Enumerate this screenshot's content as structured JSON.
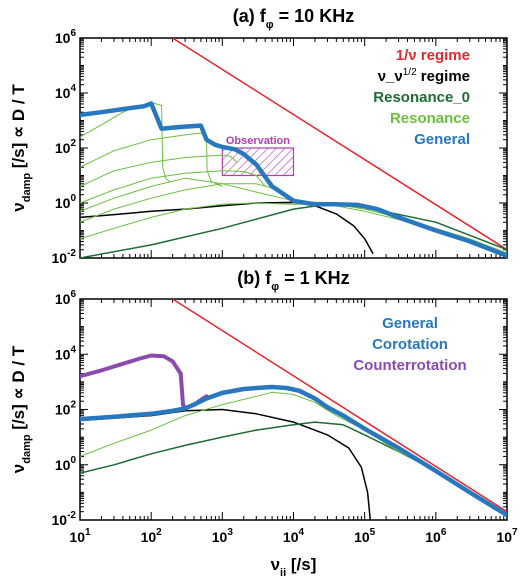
{
  "chart_data": [
    {
      "panel": "a",
      "type": "line",
      "title_prefix": "(a) f",
      "title_sub": "φ",
      "title_suffix": " = 10 KHz",
      "ylabel_main": "ν",
      "ylabel_sub": "damp",
      "ylabel_rest": " [/s] ∝ D / T",
      "xscale": "log",
      "yscale": "log",
      "xlim": [
        10,
        10000000
      ],
      "ylim": [
        0.01,
        1000000
      ],
      "yticks": [
        {
          "v": 0.01,
          "base": "10",
          "exp": "-2"
        },
        {
          "v": 1,
          "base": "10",
          "exp": "0"
        },
        {
          "v": 100,
          "base": "10",
          "exp": "2"
        },
        {
          "v": 10000,
          "base": "10",
          "exp": "4"
        },
        {
          "v": 1000000,
          "base": "10",
          "exp": "6"
        }
      ],
      "legend": [
        {
          "main": "1/ν regime",
          "sup": "",
          "tail": "",
          "color": "#e8262d"
        },
        {
          "main": "ν_ν",
          "sup": "1/2",
          "tail": " regime",
          "color": "#000000"
        },
        {
          "main": "Resonance_0",
          "sup": "",
          "tail": "",
          "color": "#1e6b34"
        },
        {
          "main": "Resonance",
          "sup": "",
          "tail": "",
          "color": "#6cbf3f"
        },
        {
          "main": "General",
          "sup": "",
          "tail": "",
          "color": "#2878c0"
        }
      ],
      "annotation": {
        "label": "Observation",
        "x": [
          1000,
          10000
        ],
        "y": [
          10,
          100
        ],
        "color": "#b040b0"
      },
      "series": [
        {
          "name": "1/ν regime",
          "color": "#e8262d",
          "width": 1.5,
          "x": [
            200,
            10000000
          ],
          "y": [
            1000000,
            0.02
          ]
        },
        {
          "name": "ν_ν^1/2 regime",
          "color": "#000000",
          "width": 1.5,
          "x": [
            10,
            30,
            100,
            300,
            1000,
            3000,
            10000,
            20000,
            40000,
            70000,
            100000,
            130000
          ],
          "y": [
            0.3,
            0.38,
            0.5,
            0.6,
            0.8,
            1.0,
            1.05,
            0.8,
            0.4,
            0.15,
            0.05,
            0.015
          ]
        },
        {
          "name": "Resonance_0",
          "color": "#1e6b34",
          "width": 1.5,
          "x": [
            10,
            100,
            1000,
            10000,
            30000,
            100000,
            1000000,
            10000000
          ],
          "y": [
            0.01,
            0.03,
            0.12,
            0.6,
            0.9,
            0.7,
            0.2,
            0.02
          ]
        },
        {
          "name": "Resonance",
          "color": "#6cbf3f",
          "width": 1,
          "x": [
            10,
            30,
            100,
            300,
            1000,
            3000,
            10000,
            30000,
            100000,
            300000,
            1000000,
            3000000,
            10000000
          ],
          "y": [
            0.05,
            0.12,
            0.3,
            0.6,
            0.9,
            1.0,
            0.9,
            0.9,
            0.5,
            0.25,
            0.1,
            0.04,
            0.015
          ]
        },
        {
          "name": "Resonance",
          "color": "#6cbf3f",
          "width": 1,
          "x": [
            10,
            30,
            100,
            300,
            1000,
            3000,
            10000,
            30000,
            100000,
            300000,
            1000000,
            3000000,
            10000000
          ],
          "y": [
            0.5,
            1.5,
            4,
            8,
            5,
            2.5,
            1.2,
            1.0,
            0.6,
            0.3,
            0.12,
            0.05,
            0.015
          ]
        },
        {
          "name": "Resonance",
          "color": "#6cbf3f",
          "width": 1,
          "x": [
            10,
            20,
            40,
            70,
            100,
            140
          ],
          "y": [
            250,
            700,
            2000,
            3500,
            4500,
            3500
          ]
        },
        {
          "name": "Resonance",
          "color": "#6cbf3f",
          "width": 1,
          "x": [
            10,
            30,
            100,
            300,
            500,
            600
          ],
          "y": [
            20,
            80,
            200,
            300,
            350,
            300
          ]
        },
        {
          "name": "Resonance",
          "color": "#6cbf3f",
          "width": 1,
          "x": [
            10,
            30,
            100,
            300,
            1000,
            1300,
            1600
          ],
          "y": [
            4,
            15,
            30,
            45,
            55,
            50,
            30
          ]
        },
        {
          "name": "Resonance",
          "color": "#6cbf3f",
          "width": 1,
          "x": [
            10,
            30,
            100,
            300,
            1000,
            2000,
            3000,
            4000
          ],
          "y": [
            1,
            3,
            8,
            12,
            15,
            14,
            10,
            4
          ]
        },
        {
          "name": "Resonance",
          "color": "#6cbf3f",
          "width": 1,
          "x": [
            10,
            30,
            100,
            300,
            1000,
            3000,
            5000,
            7000
          ],
          "y": [
            0.2,
            0.6,
            1.5,
            3,
            5,
            5,
            3.5,
            2
          ]
        },
        {
          "name": "Resonance",
          "color": "#6cbf3f",
          "width": 1,
          "x": [
            140,
            145,
            160,
            180
          ],
          "y": [
            3500,
            20,
            8,
            6
          ]
        },
        {
          "name": "Resonance",
          "color": "#6cbf3f",
          "width": 1,
          "x": [
            600,
            610,
            700,
            1000
          ],
          "y": [
            300,
            15,
            6,
            4
          ]
        },
        {
          "name": "General",
          "color": "#2878c0",
          "width": 4.5,
          "x": [
            10,
            20,
            40,
            80,
            100,
            140,
            200,
            300,
            500,
            600,
            800,
            1000,
            1500,
            2000,
            3000,
            5000,
            10000,
            20000,
            40000,
            80000,
            150000,
            300000,
            1000000,
            3000000,
            10000000
          ],
          "y": [
            1600,
            2000,
            2600,
            3300,
            4200,
            500,
            550,
            600,
            650,
            200,
            130,
            110,
            90,
            60,
            25,
            4,
            1.2,
            0.9,
            0.9,
            0.85,
            0.6,
            0.3,
            0.1,
            0.04,
            0.012
          ]
        }
      ]
    },
    {
      "panel": "b",
      "type": "line",
      "title_prefix": "(b) f",
      "title_sub": "φ",
      "title_suffix": " = 1 KHz",
      "ylabel_main": "ν",
      "ylabel_sub": "damp",
      "ylabel_rest": " [/s] ∝ D / T",
      "xlabel_main": "ν",
      "xlabel_sub": "ii",
      "xlabel_rest": " [/s]",
      "xscale": "log",
      "yscale": "log",
      "xlim": [
        10,
        10000000
      ],
      "ylim": [
        0.01,
        1000000
      ],
      "xticks": [
        {
          "v": 10,
          "base": "10",
          "exp": "1"
        },
        {
          "v": 100,
          "base": "10",
          "exp": "2"
        },
        {
          "v": 1000,
          "base": "10",
          "exp": "3"
        },
        {
          "v": 10000,
          "base": "10",
          "exp": "4"
        },
        {
          "v": 100000,
          "base": "10",
          "exp": "5"
        },
        {
          "v": 1000000,
          "base": "10",
          "exp": "6"
        },
        {
          "v": 10000000,
          "base": "10",
          "exp": "7"
        }
      ],
      "yticks": [
        {
          "v": 0.01,
          "base": "10",
          "exp": "-2"
        },
        {
          "v": 1,
          "base": "10",
          "exp": "0"
        },
        {
          "v": 100,
          "base": "10",
          "exp": "2"
        },
        {
          "v": 10000,
          "base": "10",
          "exp": "4"
        },
        {
          "v": 1000000,
          "base": "10",
          "exp": "6"
        }
      ],
      "legend": [
        {
          "main": "General",
          "sup": "",
          "tail": "",
          "color": "#2878c0"
        },
        {
          "main": "Corotation",
          "sup": "",
          "tail": "",
          "color": "#2878c0"
        },
        {
          "main": "Counterrotation",
          "sup": "",
          "tail": "",
          "color": "#8a4ab0"
        }
      ],
      "series": [
        {
          "name": "1/ν regime",
          "color": "#e8262d",
          "width": 1.5,
          "x": [
            200,
            10000000
          ],
          "y": [
            1000000,
            0.02
          ]
        },
        {
          "name": "ν_ν^1/2 regime",
          "color": "#000000",
          "width": 1.5,
          "x": [
            10,
            100,
            300,
            1000,
            3000,
            10000,
            30000,
            60000,
            90000,
            110000,
            120000
          ],
          "y": [
            40,
            60,
            90,
            100,
            70,
            35,
            12,
            4,
            0.8,
            0.1,
            0.01
          ]
        },
        {
          "name": "Resonance_0",
          "color": "#1e6b34",
          "width": 1.5,
          "x": [
            10,
            30,
            100,
            300,
            1000,
            3000,
            10000,
            20000,
            50000,
            100000,
            300000,
            1000000,
            3000000,
            10000000
          ],
          "y": [
            0.5,
            1,
            2.5,
            5,
            10,
            18,
            28,
            35,
            28,
            12,
            3,
            0.6,
            0.1,
            0.015
          ]
        },
        {
          "name": "Resonance",
          "color": "#6cbf3f",
          "width": 1,
          "x": [
            10,
            30,
            100,
            300,
            1000,
            3000,
            5000,
            10000,
            20000,
            40000,
            100000,
            300000,
            1000000,
            10000000
          ],
          "y": [
            2,
            6,
            18,
            60,
            150,
            300,
            420,
            350,
            180,
            60,
            18,
            3,
            0.6,
            0.015
          ]
        },
        {
          "name": "Counterrotation",
          "color": "#8a4ab0",
          "width": 4,
          "x": [
            10,
            20,
            40,
            70,
            100,
            150,
            200,
            260,
            280,
            300,
            400,
            600
          ],
          "y": [
            1600,
            2600,
            4500,
            7000,
            9000,
            8500,
            5500,
            2000,
            150,
            110,
            150,
            300
          ]
        },
        {
          "name": "General",
          "color": "#2878c0",
          "width": 4.5,
          "x": [
            10,
            30,
            100,
            200,
            300,
            400,
            600,
            1000,
            2000,
            3000,
            5000,
            8000,
            12000,
            20000,
            30000,
            50000,
            100000,
            300000,
            1000000,
            3000000,
            10000000
          ],
          "y": [
            45,
            55,
            70,
            90,
            110,
            150,
            250,
            400,
            550,
            600,
            650,
            600,
            480,
            250,
            120,
            60,
            20,
            4,
            0.6,
            0.1,
            0.015
          ]
        }
      ]
    }
  ]
}
